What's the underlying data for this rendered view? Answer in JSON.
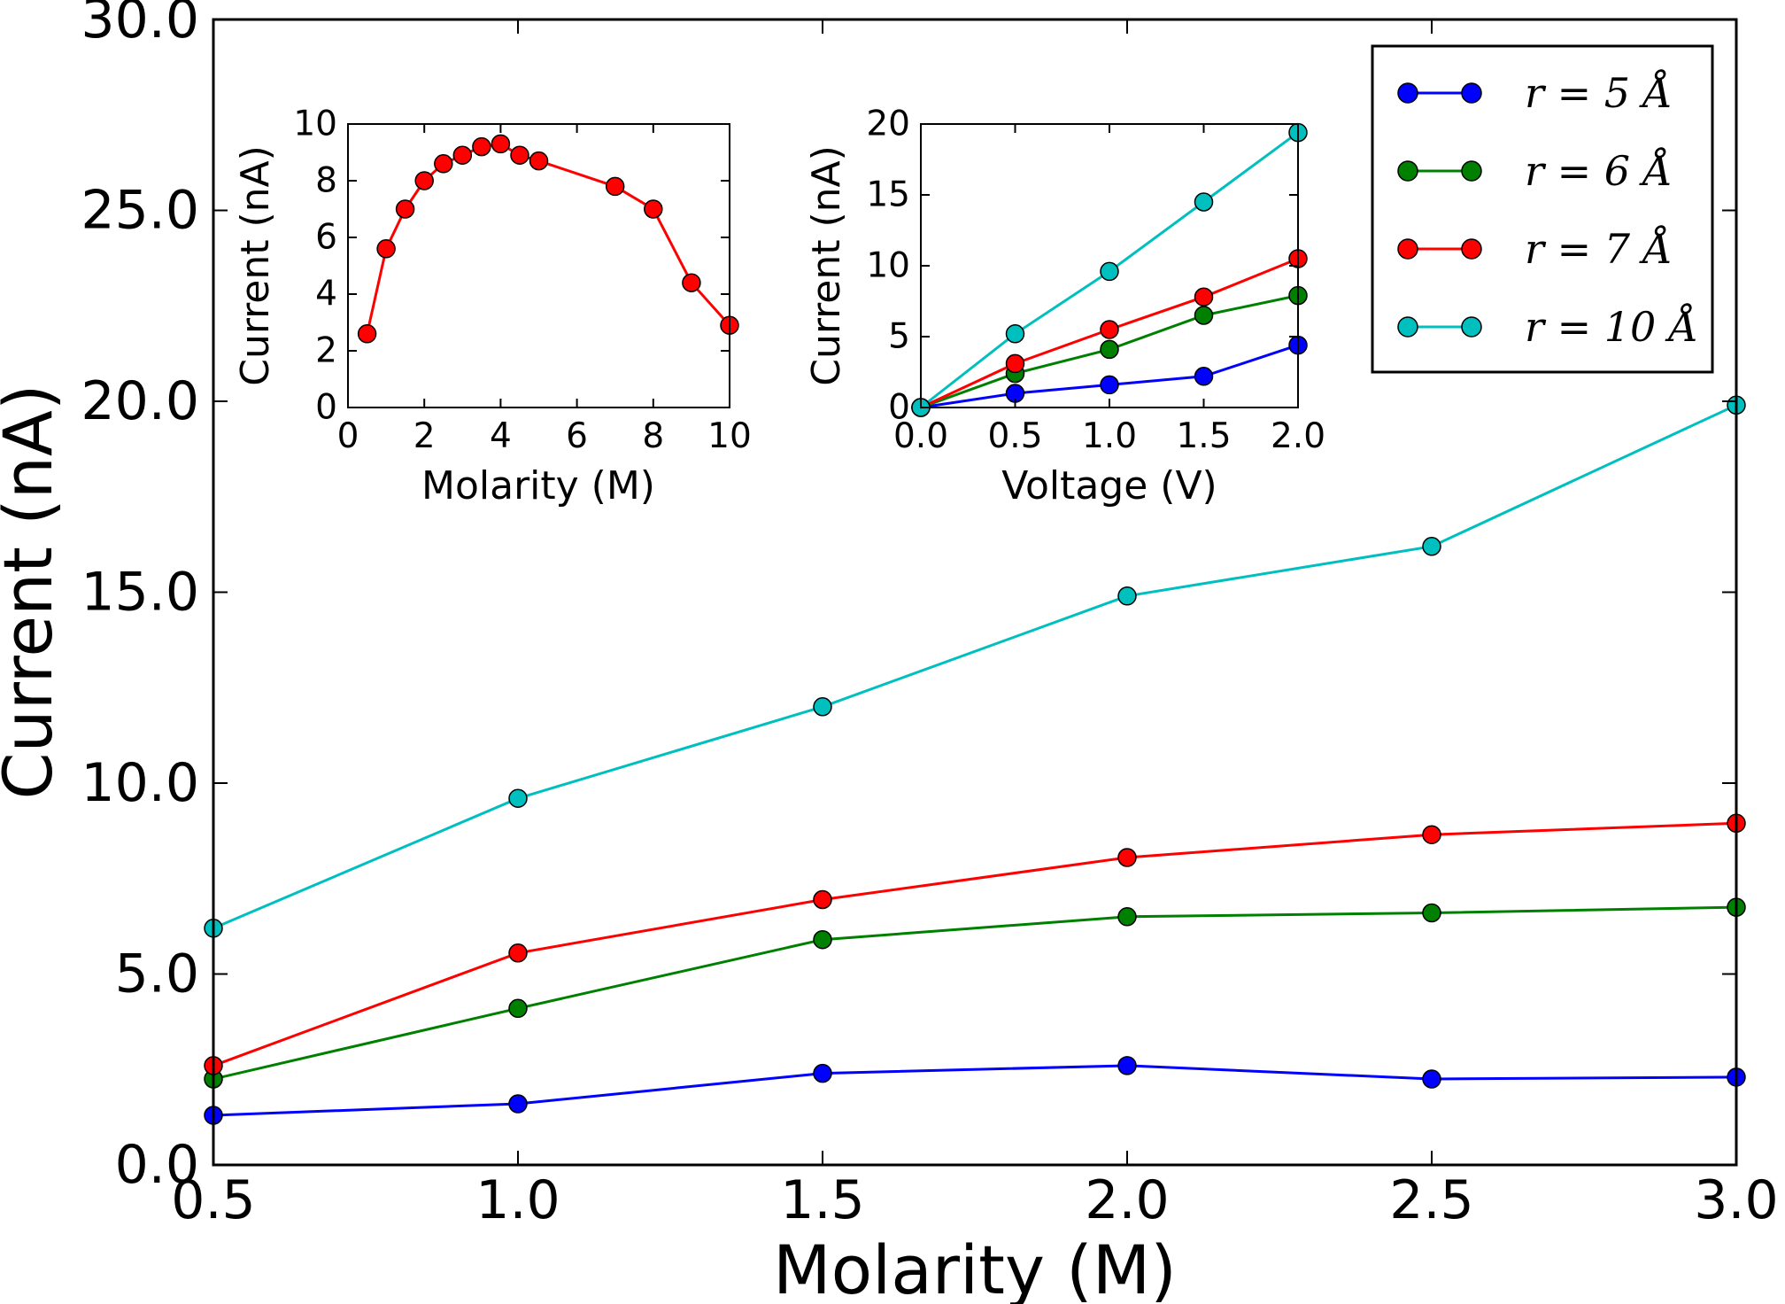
{
  "chart_data": [
    {
      "type": "line",
      "xlabel": "Molarity (M)",
      "ylabel": "Current (nA)",
      "xlim": [
        0.5,
        3.0
      ],
      "ylim": [
        0.0,
        30.0
      ],
      "xticks": [
        "0.5",
        "1.0",
        "1.5",
        "2.0",
        "2.5",
        "3.0"
      ],
      "yticks": [
        "0.0",
        "5.0",
        "10.0",
        "15.0",
        "20.0",
        "25.0",
        "30.0"
      ],
      "grid": false,
      "legend_position": "top-right",
      "x": [
        0.5,
        1.0,
        1.5,
        2.0,
        2.5,
        3.0
      ],
      "series": [
        {
          "name": "r = 5 Å",
          "color": "#0000ff",
          "values": [
            1.3,
            1.6,
            2.4,
            2.6,
            2.25,
            2.3
          ]
        },
        {
          "name": "r = 6 Å",
          "color": "#008000",
          "values": [
            2.25,
            4.1,
            5.9,
            6.5,
            6.6,
            6.75
          ]
        },
        {
          "name": "r = 7 Å",
          "color": "#ff0000",
          "values": [
            2.6,
            5.55,
            6.95,
            8.05,
            8.65,
            8.95
          ]
        },
        {
          "name": "r = 10 Å",
          "color": "#00bfbf",
          "values": [
            6.2,
            9.6,
            12.0,
            14.9,
            16.2,
            19.9
          ]
        }
      ]
    },
    {
      "type": "line",
      "xlabel": "Molarity (M)",
      "ylabel": "Current (nA)",
      "xlim": [
        0,
        10
      ],
      "ylim": [
        0,
        10
      ],
      "xticks": [
        "0",
        "2",
        "4",
        "6",
        "8",
        "10"
      ],
      "yticks": [
        "0",
        "2",
        "4",
        "6",
        "8",
        "10"
      ],
      "grid": false,
      "series": [
        {
          "color": "#ff0000",
          "x": [
            0.5,
            1.0,
            1.5,
            2.0,
            2.5,
            3.0,
            3.5,
            4.0,
            4.5,
            5.0,
            7.0,
            8.0,
            9.0,
            10.0
          ],
          "values": [
            2.6,
            5.6,
            7.0,
            8.0,
            8.6,
            8.9,
            9.2,
            9.3,
            8.9,
            8.7,
            7.8,
            7.0,
            4.4,
            2.9
          ]
        }
      ]
    },
    {
      "type": "line",
      "xlabel": "Voltage (V)",
      "ylabel": "Current (nA)",
      "xlim": [
        0.0,
        2.0
      ],
      "ylim": [
        0,
        20
      ],
      "xticks": [
        "0.0",
        "0.5",
        "1.0",
        "1.5",
        "2.0"
      ],
      "yticks": [
        "0",
        "5",
        "10",
        "15",
        "20"
      ],
      "grid": false,
      "x": [
        0.0,
        0.5,
        1.0,
        1.5,
        2.0
      ],
      "series": [
        {
          "color": "#0000ff",
          "values": [
            0.0,
            1.0,
            1.6,
            2.2,
            4.4
          ]
        },
        {
          "color": "#008000",
          "values": [
            0.0,
            2.4,
            4.1,
            6.5,
            7.9
          ]
        },
        {
          "color": "#ff0000",
          "values": [
            0.0,
            3.1,
            5.5,
            7.8,
            10.5
          ]
        },
        {
          "color": "#00bfbf",
          "values": [
            0.0,
            5.2,
            9.6,
            14.5,
            19.4
          ]
        }
      ]
    }
  ]
}
